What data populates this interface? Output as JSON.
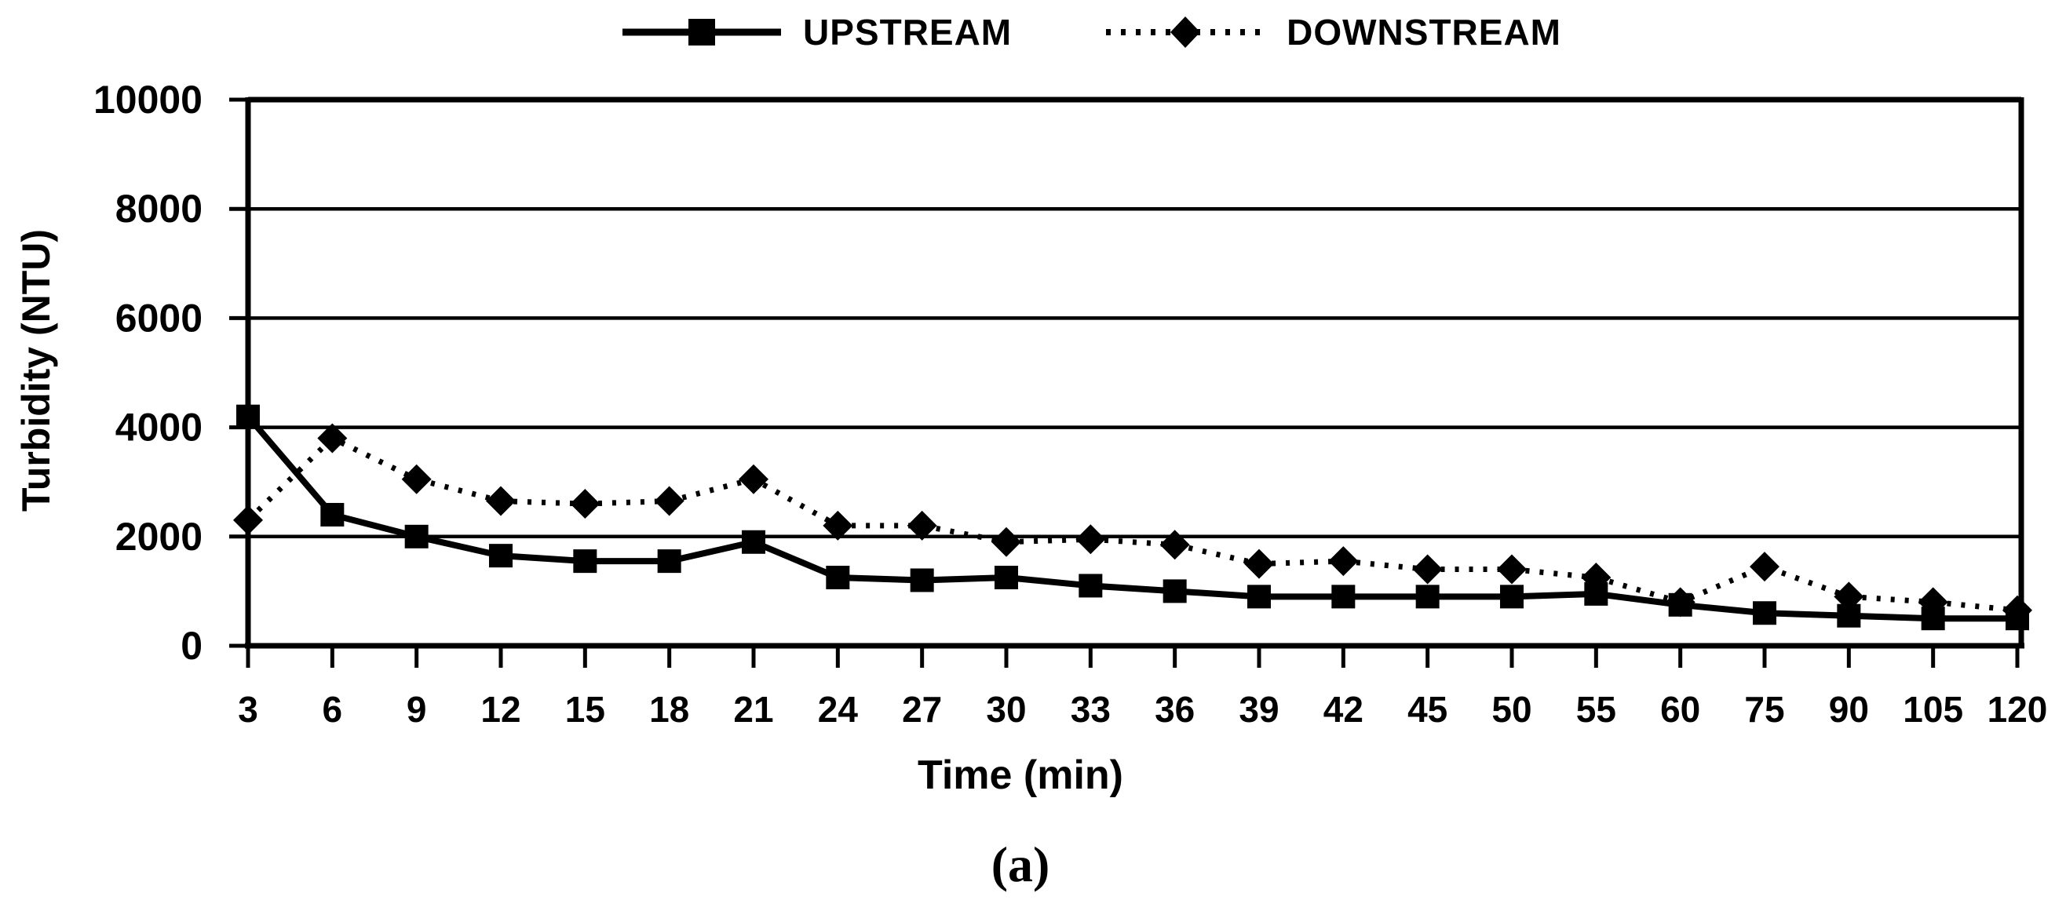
{
  "figure": {
    "caption": "(a)"
  },
  "legend": {
    "position": "top-center",
    "items": [
      {
        "label": "UPSTREAM",
        "marker": "square",
        "line_style": "solid"
      },
      {
        "label": "DOWNSTREAM",
        "marker": "diamond",
        "line_style": "dotted"
      }
    ]
  },
  "chart_data": {
    "type": "line",
    "title": "",
    "xlabel": "Time (min)",
    "ylabel": "Turbidity (NTU)",
    "x_categories": [
      "3",
      "6",
      "9",
      "12",
      "15",
      "18",
      "21",
      "24",
      "27",
      "30",
      "33",
      "36",
      "39",
      "42",
      "45",
      "50",
      "55",
      "60",
      "75",
      "90",
      "105",
      "120"
    ],
    "ylim": [
      0,
      10000
    ],
    "yticks": [
      0,
      2000,
      4000,
      6000,
      8000,
      10000
    ],
    "grid": "horizontal",
    "legend_position": "top-center",
    "axis_color": "#000000",
    "series": [
      {
        "name": "UPSTREAM",
        "marker": "square",
        "line_style": "solid",
        "color": "#000000",
        "values": [
          4200,
          2400,
          2000,
          1650,
          1550,
          1550,
          1900,
          1250,
          1200,
          1250,
          1100,
          1000,
          900,
          900,
          900,
          900,
          950,
          750,
          600,
          550,
          500,
          500
        ]
      },
      {
        "name": "DOWNSTREAM",
        "marker": "diamond",
        "line_style": "dotted",
        "color": "#000000",
        "values": [
          2300,
          3800,
          3050,
          2650,
          2600,
          2650,
          3050,
          2200,
          2200,
          1900,
          1950,
          1850,
          1500,
          1550,
          1400,
          1400,
          1250,
          800,
          1450,
          900,
          800,
          650
        ]
      }
    ]
  }
}
